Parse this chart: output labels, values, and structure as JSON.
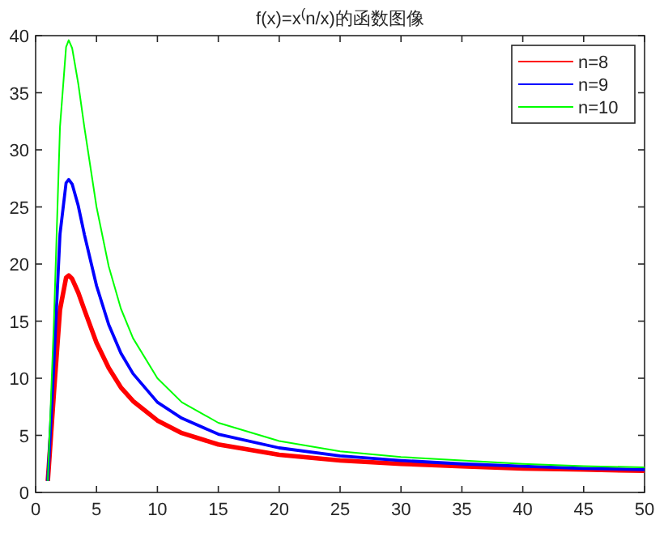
{
  "chart_data": {
    "type": "line",
    "title": "f(x)=x$^{(}$n/x)的函数图像",
    "x": [
      1,
      1.5,
      2,
      2.5,
      2.718,
      3,
      3.5,
      4,
      5,
      6,
      7,
      8,
      10,
      12,
      15,
      20,
      25,
      30,
      35,
      40,
      45,
      50
    ],
    "series": [
      {
        "name": "n=8",
        "color": "#ff0000",
        "values": [
          1,
          8.7,
          16.0,
          18.8,
          19.0,
          18.7,
          17.5,
          16.0,
          13.1,
          10.9,
          9.2,
          8.0,
          6.3,
          5.2,
          4.2,
          3.3,
          2.8,
          2.5,
          2.3,
          2.1,
          2.0,
          1.9
        ]
      },
      {
        "name": "n=9",
        "color": "#0000ff",
        "values": [
          1,
          11.4,
          22.6,
          27.1,
          27.4,
          27.0,
          25.1,
          22.6,
          18.1,
          14.7,
          12.2,
          10.4,
          7.9,
          6.5,
          5.1,
          3.9,
          3.2,
          2.8,
          2.5,
          2.3,
          2.1,
          2.0
        ]
      },
      {
        "name": "n=10",
        "color": "#00ff00",
        "values": [
          1,
          14.9,
          32.0,
          39.0,
          39.6,
          38.9,
          35.8,
          32.0,
          25.0,
          19.8,
          16.1,
          13.5,
          10.0,
          7.9,
          6.1,
          4.5,
          3.6,
          3.1,
          2.8,
          2.5,
          2.3,
          2.2
        ]
      }
    ],
    "xlim": [
      0,
      50
    ],
    "xticks": [
      0,
      5,
      10,
      15,
      20,
      25,
      30,
      35,
      40,
      45,
      50
    ],
    "ylim": [
      0,
      40
    ],
    "yticks": [
      0,
      5,
      10,
      15,
      20,
      25,
      30,
      35,
      40
    ],
    "grid": false,
    "legend": "top right",
    "marker": "none",
    "line_style": "solid"
  }
}
